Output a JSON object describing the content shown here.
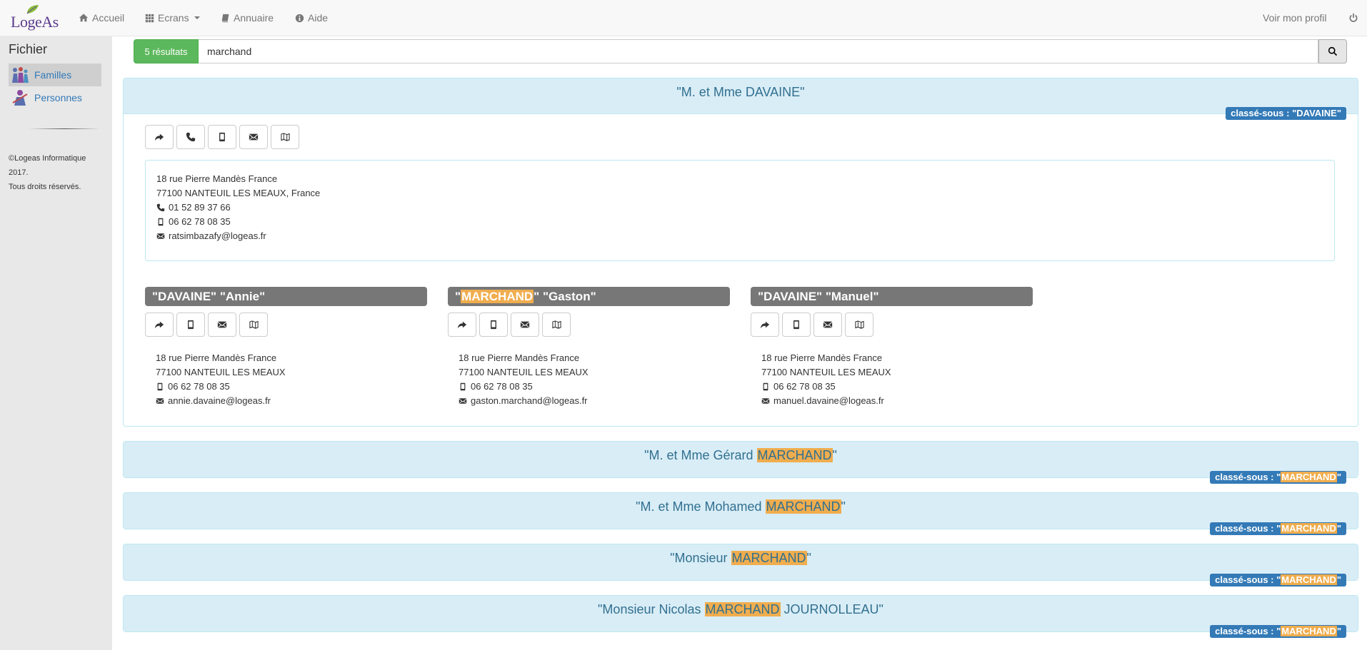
{
  "nav": {
    "logo": "LogeAs",
    "items": [
      {
        "label": "Accueil",
        "icon": "home-icon"
      },
      {
        "label": "Ecrans",
        "icon": "grid-icon"
      },
      {
        "label": "Annuaire",
        "icon": "book-icon"
      },
      {
        "label": "Aide",
        "icon": "info-icon"
      }
    ],
    "profile": "Voir mon profil",
    "power_icon": "power-icon"
  },
  "sidebar": {
    "title": "Fichier",
    "items": [
      {
        "label": "Familles",
        "active": true
      },
      {
        "label": "Personnes",
        "active": false
      }
    ],
    "copyright": [
      "©Logeas Informatique",
      "2017.",
      "Tous droits réservés."
    ]
  },
  "search": {
    "results": "5 résultats",
    "value": "marchand"
  },
  "families": [
    {
      "title_pre": "\"M. et Mme DAVAINE\"",
      "title_hl": "",
      "title_post": "",
      "classe_pre": "classé-sous : \"DAVAINE\"",
      "classe_hl": "",
      "classe_post": "",
      "expanded": true,
      "address": {
        "street": "18 rue Pierre Mandès France",
        "city": "77100 NANTEUIL LES MEAUX, France",
        "phone": "01 52 89 37 66",
        "mobile": "06 62 78 08 35",
        "email": "ratsimbazafy@logeas.fr"
      },
      "members": [
        {
          "name_pre": "\"DAVAINE\" \"Annie\"",
          "name_hl": "",
          "name_post": "",
          "street": "18 rue Pierre Mandès France",
          "city": "77100 NANTEUIL LES MEAUX",
          "mobile": "06 62 78 08 35",
          "email": "annie.davaine@logeas.fr"
        },
        {
          "name_pre": "\"",
          "name_hl": "MARCHAND",
          "name_post": "\" \"Gaston\"",
          "street": "18 rue Pierre Mandès France",
          "city": "77100 NANTEUIL LES MEAUX",
          "mobile": "06 62 78 08 35",
          "email": "gaston.marchand@logeas.fr"
        },
        {
          "name_pre": "\"DAVAINE\" \"Manuel\"",
          "name_hl": "",
          "name_post": "",
          "street": "18 rue Pierre Mandès France",
          "city": "77100 NANTEUIL LES MEAUX",
          "mobile": "06 62 78 08 35",
          "email": "manuel.davaine@logeas.fr"
        }
      ]
    },
    {
      "title_pre": "\"M. et Mme Gérard ",
      "title_hl": "MARCHAND",
      "title_post": "\"",
      "classe_pre": "classé-sous : \"",
      "classe_hl": "MARCHAND",
      "classe_post": "\""
    },
    {
      "title_pre": "\"M. et Mme Mohamed ",
      "title_hl": "MARCHAND",
      "title_post": "\"",
      "classe_pre": "classé-sous : \"",
      "classe_hl": "MARCHAND",
      "classe_post": "\""
    },
    {
      "title_pre": "\"Monsieur ",
      "title_hl": "MARCHAND",
      "title_post": "\"",
      "classe_pre": "classé-sous : \"",
      "classe_hl": "MARCHAND",
      "classe_post": "\""
    },
    {
      "title_pre": "\"Monsieur Nicolas ",
      "title_hl": "MARCHAND",
      "title_post": " JOURNOLLEAU\"",
      "classe_pre": "classé-sous : \"",
      "classe_hl": "MARCHAND",
      "classe_post": "\""
    }
  ],
  "colors": {
    "accent": "#337ab7",
    "results_badge": "#5cb85c",
    "panel_heading": "#d9edf7",
    "highlight": "#f0ad4e",
    "member_header": "#777777"
  },
  "icons": {
    "family_buttons": [
      "share-icon",
      "phone-icon",
      "mobile-icon",
      "envelope-icon",
      "map-icon"
    ],
    "member_buttons": [
      "share-icon",
      "mobile-icon",
      "envelope-icon",
      "map-icon"
    ]
  }
}
